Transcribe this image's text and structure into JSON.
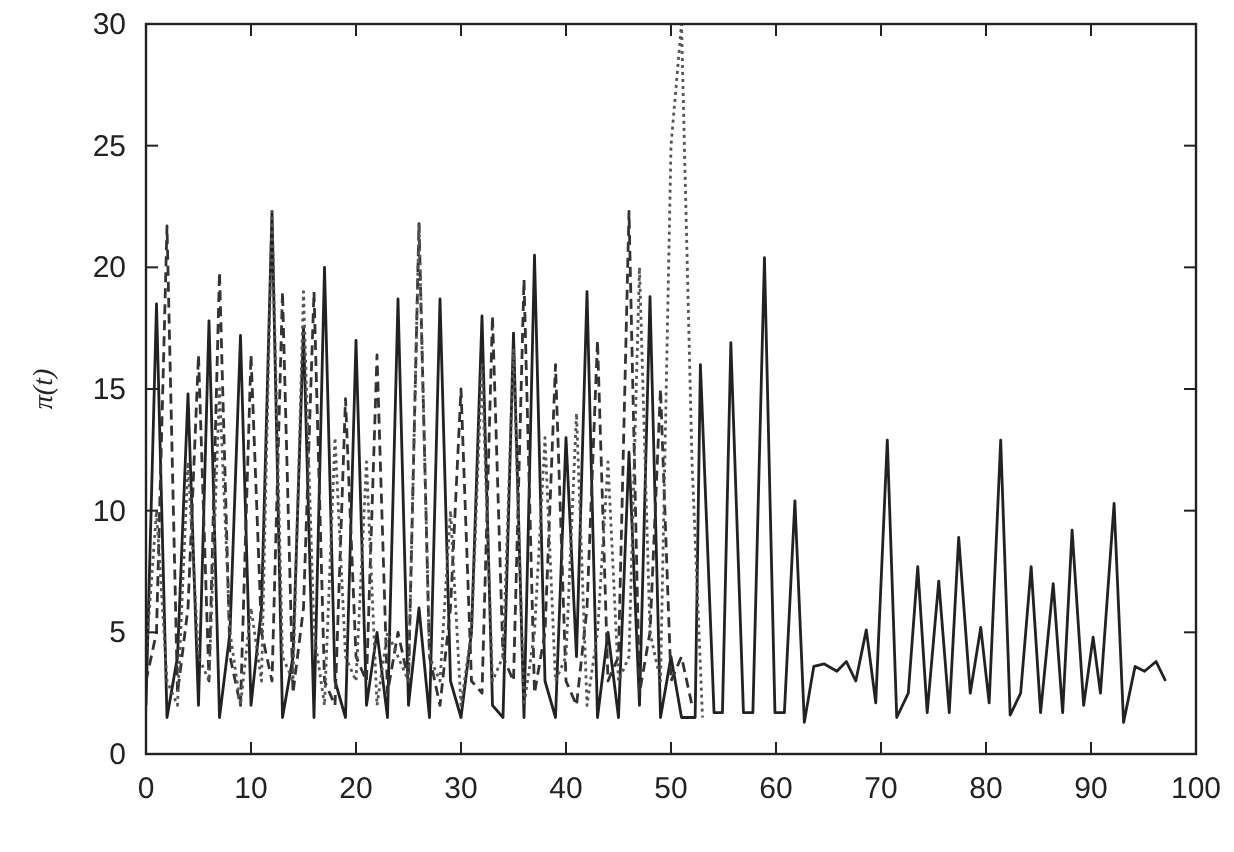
{
  "chart_data": {
    "type": "line",
    "ylabel": "π(t)",
    "xlim": [
      0,
      100
    ],
    "ylim": [
      0,
      30
    ],
    "xticks": [
      0,
      10,
      20,
      30,
      40,
      50,
      60,
      70,
      80,
      90,
      100
    ],
    "yticks": [
      0,
      5,
      10,
      15,
      20,
      25,
      30
    ],
    "grid": false,
    "marker": "none",
    "series": [
      {
        "color": "#222222",
        "line_style": "solid",
        "x": [
          0,
          1,
          2,
          3,
          4,
          5,
          6,
          7,
          8,
          9,
          10,
          11,
          12,
          13,
          14,
          15,
          16,
          17,
          18,
          19,
          20,
          21,
          22,
          23,
          24,
          25,
          26,
          27,
          28,
          29,
          30,
          31,
          32,
          33,
          34,
          35,
          36,
          37,
          38,
          39,
          40,
          41,
          42,
          43,
          44,
          45,
          46,
          47,
          48,
          49,
          50,
          51,
          52.3,
          52.8,
          54.1,
          54.9,
          55.7,
          56.9,
          57.8,
          58.9,
          59.9,
          60.8,
          61.8,
          62.7,
          63.6,
          64.6,
          65.8,
          66.7,
          67.6,
          68.6,
          69.5,
          70.6,
          71.5,
          72.6,
          73.5,
          74.4,
          75.5,
          76.5,
          77.4,
          78.5,
          79.5,
          80.3,
          81.4,
          82.3,
          83.3,
          84.3,
          85.2,
          86.4,
          87.3,
          88.2,
          89.3,
          90.2,
          90.9,
          92.2,
          93.1,
          94.2,
          95.1,
          96.2,
          97.1
        ],
        "values": [
          2,
          18.5,
          1.5,
          4,
          14.8,
          2,
          17.8,
          1.5,
          5,
          17.2,
          2,
          6,
          22.3,
          1.5,
          4,
          17.5,
          1.5,
          20,
          3,
          1.5,
          17,
          2,
          5,
          1.5,
          18.7,
          2,
          6,
          1.5,
          18.7,
          3,
          1.5,
          5,
          18,
          2,
          1.5,
          17.3,
          1.5,
          20.5,
          3,
          1.5,
          13,
          4,
          19,
          1.5,
          5,
          1.5,
          12.4,
          2,
          18.8,
          1.5,
          4,
          1.5,
          1.5,
          16,
          1.7,
          1.7,
          16.9,
          1.7,
          1.7,
          20.4,
          1.7,
          1.7,
          10.4,
          1.3,
          3.6,
          3.7,
          3.4,
          3.8,
          3,
          5.1,
          2.1,
          12.9,
          1.5,
          2.5,
          7.7,
          1.7,
          7.1,
          1.7,
          8.9,
          2.5,
          5.2,
          2.1,
          12.9,
          1.6,
          2.5,
          7.7,
          1.7,
          7,
          1.7,
          9.2,
          2,
          4.8,
          2.5,
          10.3,
          1.3,
          3.6,
          3.4,
          3.8,
          3
        ]
      },
      {
        "color": "#333333",
        "line_style": "dashed",
        "x": [
          0,
          1,
          2,
          3,
          4,
          5,
          6,
          7,
          8,
          9,
          10,
          11,
          12,
          13,
          14,
          15,
          16,
          17,
          18,
          19,
          20,
          21,
          22,
          23,
          24,
          25,
          26,
          27,
          28,
          29,
          30,
          31,
          32,
          33,
          34,
          35,
          36,
          37,
          38,
          39,
          40,
          41,
          42,
          43,
          44,
          45,
          46,
          47,
          48,
          49,
          50,
          51,
          52
        ],
        "values": [
          3,
          5,
          21.7,
          2.5,
          6,
          16.4,
          3,
          19.8,
          4,
          2,
          16.4,
          5,
          3,
          19,
          2.5,
          6,
          19,
          3,
          2,
          14.6,
          4,
          3,
          16.4,
          2.5,
          5,
          3,
          21.8,
          4,
          2,
          6,
          15,
          3,
          2.5,
          18,
          4,
          3,
          19.5,
          2.5,
          5,
          16,
          3,
          2,
          6,
          17,
          3,
          4,
          22.3,
          2.5,
          5,
          15,
          3,
          4,
          2
        ]
      },
      {
        "color": "#555555",
        "line_style": "dotted",
        "x": [
          0,
          1,
          2,
          3,
          4,
          5,
          6,
          7,
          8,
          9,
          10,
          11,
          12,
          13,
          14,
          15,
          16,
          17,
          18,
          19,
          20,
          21,
          22,
          23,
          24,
          25,
          26,
          27,
          28,
          29,
          30,
          31,
          32,
          33,
          34,
          35,
          36,
          37,
          38,
          39,
          40,
          41,
          42,
          43,
          44,
          45,
          46,
          47,
          48,
          49,
          50,
          51,
          52,
          53
        ],
        "values": [
          4,
          10,
          3,
          2,
          12,
          4,
          3,
          15,
          5,
          2,
          6,
          3,
          22.3,
          4,
          3,
          19,
          5,
          2,
          13,
          4,
          3,
          12,
          2,
          5,
          4,
          3,
          21.8,
          4,
          3,
          10,
          2,
          5,
          16,
          3,
          4,
          16.6,
          2,
          5,
          13,
          3,
          4,
          14,
          2,
          5,
          12,
          3,
          4,
          20,
          5,
          3,
          25,
          30,
          12,
          1.5
        ]
      }
    ]
  }
}
